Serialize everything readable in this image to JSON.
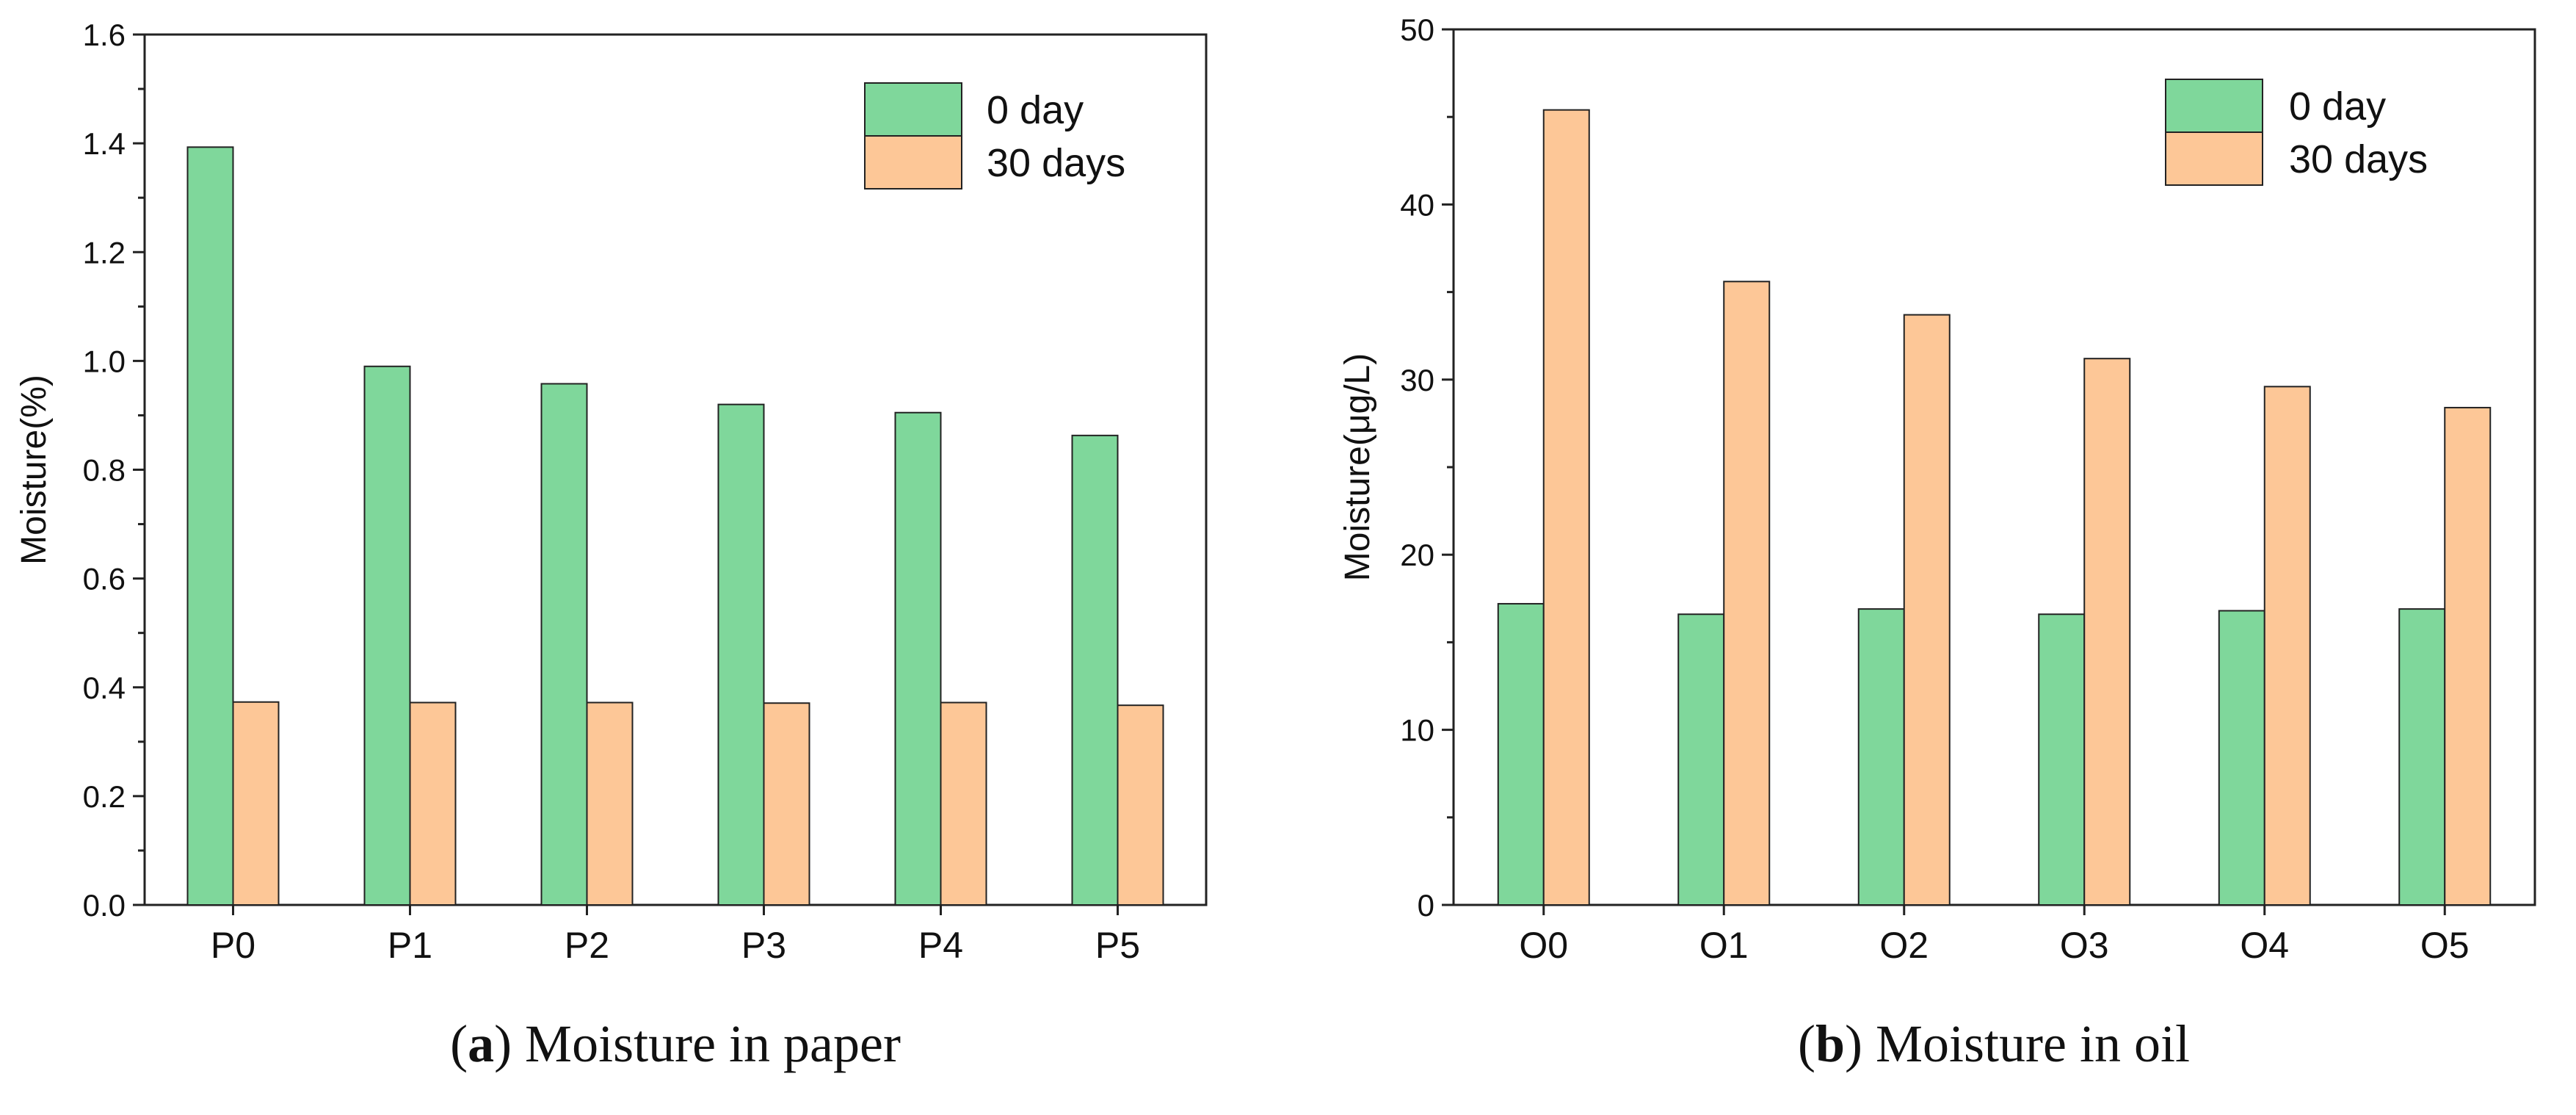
{
  "chart_data": [
    {
      "type": "bar",
      "caption_letter": "a",
      "caption_text": "Moisture in paper",
      "ylabel": "Moisture(%)",
      "xlabel": "",
      "ylim": [
        0,
        1.6
      ],
      "yticks": [
        "0.0",
        "0.2",
        "0.4",
        "0.6",
        "0.8",
        "1.0",
        "1.2",
        "1.4",
        "1.6"
      ],
      "categories": [
        "P0",
        "P1",
        "P2",
        "P3",
        "P4",
        "P5"
      ],
      "series": [
        {
          "name": "0 day",
          "color": "#7fd79b",
          "values": [
            1.393,
            0.99,
            0.958,
            0.92,
            0.905,
            0.863
          ]
        },
        {
          "name": "30 days",
          "color": "#fdc797",
          "values": [
            0.373,
            0.372,
            0.372,
            0.371,
            0.372,
            0.367
          ]
        }
      ],
      "legend_position": "top-right",
      "grid": false
    },
    {
      "type": "bar",
      "caption_letter": "b",
      "caption_text": "Moisture in oil",
      "ylabel": "Moisture(μg/L)",
      "xlabel": "",
      "ylim": [
        0,
        50
      ],
      "yticks": [
        "0",
        "10",
        "20",
        "30",
        "40",
        "50"
      ],
      "categories": [
        "O0",
        "O1",
        "O2",
        "O3",
        "O4",
        "O5"
      ],
      "series": [
        {
          "name": "0 day",
          "color": "#7fd79b",
          "values": [
            17.2,
            16.6,
            16.9,
            16.6,
            16.8,
            16.9
          ]
        },
        {
          "name": "30 days",
          "color": "#fdc797",
          "values": [
            45.4,
            35.6,
            33.7,
            31.2,
            29.6,
            28.4
          ]
        }
      ],
      "legend_position": "top-right",
      "grid": false
    }
  ]
}
